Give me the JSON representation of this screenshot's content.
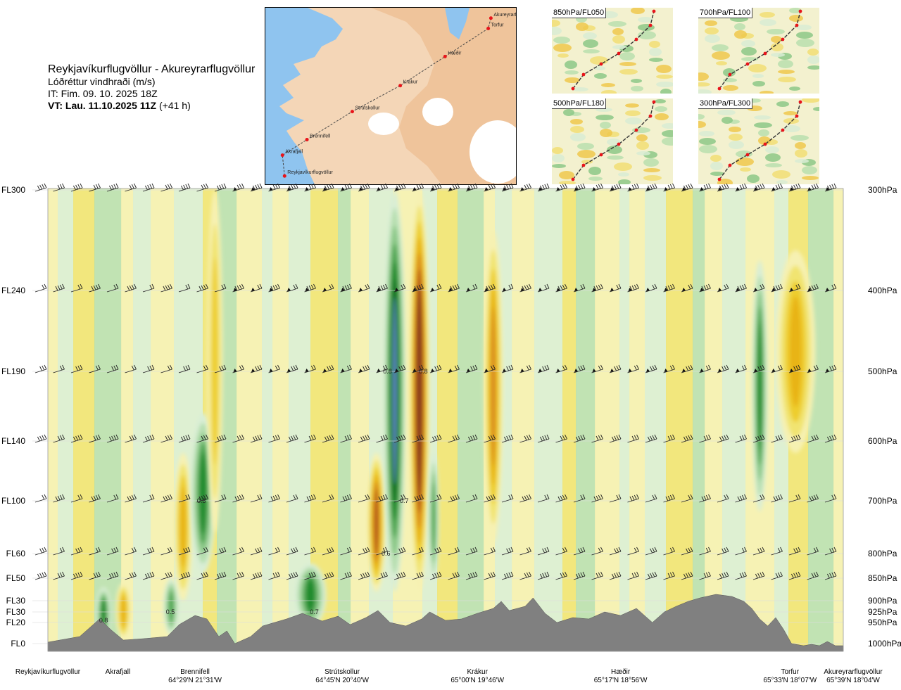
{
  "header": {
    "title": "Reykjavíkurflugvöllur - Akureyrarflugvöllur",
    "variable": "Lóðréttur vindhraði (m/s)",
    "issue_time": "IT: Fim. 09. 10. 2025 18Z",
    "valid_time": "VT: Lau. 11.10.2025 11Z",
    "lead_time": "(+41 h)"
  },
  "map": {
    "stations": [
      {
        "name": "Akureyrarflugvöllur",
        "lon": -18.07,
        "lat": 65.65
      },
      {
        "name": "Torfur",
        "lon": -18.12,
        "lat": 65.55
      },
      {
        "name": "Hæðir",
        "lon": -18.93,
        "lat": 65.28
      },
      {
        "name": "Krákur",
        "lon": -19.77,
        "lat": 65.0
      },
      {
        "name": "Strútskollur",
        "lon": -20.67,
        "lat": 64.75
      },
      {
        "name": "Brennifell",
        "lon": -21.52,
        "lat": 64.48
      },
      {
        "name": "Akrafjall",
        "lon": -21.98,
        "lat": 64.33
      },
      {
        "name": "Reykjavíkurflugvöllur",
        "lon": -21.94,
        "lat": 64.13
      }
    ],
    "colors": {
      "sea": "#8fc4ef",
      "land": "#f4d6b7",
      "highland": "#eebd91",
      "glacier": "#ffffff",
      "route": "#444444",
      "station": "#e8141a"
    }
  },
  "thumbnails": [
    {
      "label": "850hPa/FL050"
    },
    {
      "label": "700hPa/FL100"
    },
    {
      "label": "500hPa/FL180"
    },
    {
      "label": "300hPa/FL300"
    }
  ],
  "chart_data": {
    "type": "heatmap",
    "title": "Reykjavíkurflugvöllur - Akureyrarflugvöllur",
    "variable": "Lóðréttur vindhraði (m/s)",
    "left_axis": [
      "FL300",
      "FL240",
      "FL190",
      "FL140",
      "FL100",
      "FL60",
      "FL50",
      "FL30",
      "FL30",
      "FL20",
      "FL0"
    ],
    "right_axis": [
      "300hPa",
      "400hPa",
      "500hPa",
      "600hPa",
      "700hPa",
      "800hPa",
      "850hPa",
      "900hPa",
      "925hPa",
      "950hPa",
      "1000hPa"
    ],
    "pressure_levels_hpa": [
      300,
      400,
      500,
      600,
      700,
      800,
      850,
      900,
      925,
      950,
      1000
    ],
    "locations": [
      {
        "name": "Reykjavíkurflugvöllur",
        "coord": "",
        "dist": 0
      },
      {
        "name": "Akrafjall",
        "coord": "",
        "dist": 0.088
      },
      {
        "name": "Brennifell",
        "coord": "64°29'N 21°31'W",
        "dist": 0.185
      },
      {
        "name": "Strútskollur",
        "coord": "64°45'N 20°40'W",
        "dist": 0.37
      },
      {
        "name": "Krákur",
        "coord": "65°00'N 19°46'W",
        "dist": 0.54
      },
      {
        "name": "Hæðir",
        "coord": "65°17'N 18°56'W",
        "dist": 0.72
      },
      {
        "name": "Torfur",
        "coord": "65°33'N 18°07'W",
        "dist": 0.933
      },
      {
        "name": "Akureyrarflugvöllur",
        "coord": "65°39'N 18°04'W",
        "dist": 1.0
      }
    ],
    "contour_labels": [
      {
        "value": "0.8",
        "dist": 0.07,
        "hpa": 945
      },
      {
        "value": "0.5",
        "dist": 0.154,
        "hpa": 925
      },
      {
        "value": "0.8",
        "dist": 0.193,
        "hpa": 700
      },
      {
        "value": "0.7",
        "dist": 0.335,
        "hpa": 925
      },
      {
        "value": "0.8",
        "dist": 0.427,
        "hpa": 500
      },
      {
        "value": "0.8",
        "dist": 0.472,
        "hpa": 500
      },
      {
        "value": "0.7",
        "dist": 0.448,
        "hpa": 700
      },
      {
        "value": "0.6",
        "dist": 0.425,
        "hpa": 800
      }
    ],
    "bands": [
      {
        "kind": "down",
        "dist": 0.07,
        "width": 0.01,
        "p_top": 870,
        "p_bot": 990,
        "level": 4
      },
      {
        "kind": "up",
        "dist": 0.095,
        "width": 0.01,
        "p_top": 860,
        "p_bot": 990,
        "level": 3
      },
      {
        "kind": "down",
        "dist": 0.155,
        "width": 0.01,
        "p_top": 850,
        "p_bot": 980,
        "level": 3
      },
      {
        "kind": "up",
        "dist": 0.17,
        "width": 0.012,
        "p_top": 620,
        "p_bot": 900,
        "level": 3
      },
      {
        "kind": "down",
        "dist": 0.195,
        "width": 0.016,
        "p_top": 560,
        "p_bot": 840,
        "level": 4
      },
      {
        "kind": "up",
        "dist": 0.21,
        "width": 0.01,
        "p_top": 300,
        "p_bot": 760,
        "level": 2
      },
      {
        "kind": "down",
        "dist": 0.33,
        "width": 0.02,
        "p_top": 820,
        "p_bot": 960,
        "level": 4
      },
      {
        "kind": "up",
        "dist": 0.413,
        "width": 0.012,
        "p_top": 620,
        "p_bot": 880,
        "level": 5
      },
      {
        "kind": "down",
        "dist": 0.436,
        "width": 0.014,
        "p_top": 300,
        "p_bot": 880,
        "level": 6
      },
      {
        "kind": "up",
        "dist": 0.467,
        "width": 0.013,
        "p_top": 300,
        "p_bot": 880,
        "level": 7
      },
      {
        "kind": "down",
        "dist": 0.485,
        "width": 0.007,
        "p_top": 620,
        "p_bot": 860,
        "level": 3
      },
      {
        "kind": "up",
        "dist": 0.56,
        "width": 0.012,
        "p_top": 340,
        "p_bot": 780,
        "level": 4
      },
      {
        "kind": "down",
        "dist": 0.895,
        "width": 0.01,
        "p_top": 370,
        "p_bot": 720,
        "level": 4
      },
      {
        "kind": "up",
        "dist": 0.94,
        "width": 0.025,
        "p_top": 360,
        "p_bot": 620,
        "level": 3
      }
    ],
    "colors": {
      "terrain": "#808080",
      "down": [
        "#d9eed5",
        "#b7dfb0",
        "#8bc888",
        "#4fa652",
        "#1e8a2c",
        "#156e22",
        "#5b86c0"
      ],
      "up": [
        "#f6f1b2",
        "#f1e471",
        "#eece2e",
        "#e8b417",
        "#d98c22",
        "#b3561a",
        "#8a3f1c"
      ]
    },
    "grid": true
  }
}
